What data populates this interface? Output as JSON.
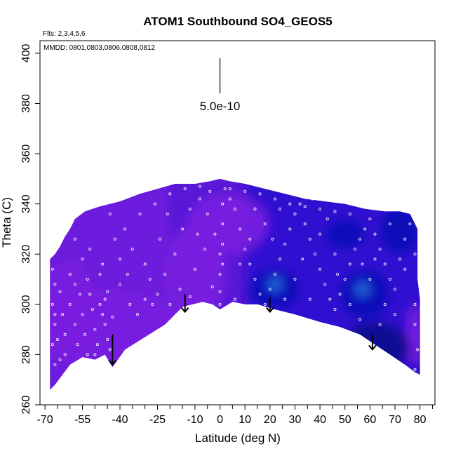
{
  "chart_data": {
    "type": "heatmap",
    "title": "ATOM1 Southbound SO4_GEOS5",
    "annotations": {
      "flights": "Flts: 2,3,4,5,6",
      "dates": "MMDD: 0801,0803,0806,0808,0812",
      "scale_label": "5.0e-10"
    },
    "xlabel": "Latitude (deg N)",
    "ylabel": "Theta (C)",
    "xlim": [
      -72,
      86
    ],
    "ylim": [
      260,
      405
    ],
    "x_ticks": [
      -70,
      -55,
      -40,
      -25,
      -10,
      0,
      10,
      20,
      30,
      40,
      50,
      60,
      70,
      80
    ],
    "x_minor_ticks": [
      -65,
      -60,
      -50,
      -45,
      -35,
      -30,
      -20,
      -15,
      -5,
      5,
      15,
      25,
      35,
      45,
      55,
      65,
      75,
      85
    ],
    "y_ticks": [
      260,
      280,
      300,
      320,
      340,
      360,
      380,
      400
    ],
    "scale_bar": {
      "x": 0,
      "y_bottom": 384,
      "y_top": 398
    },
    "colors": {
      "violet": "#7a1fe0",
      "purple": "#5a18d8",
      "blue": "#2a10d0",
      "deep_blue": "#0a08b8",
      "navy": "#08088f",
      "light_blue": "#1f6bd8",
      "dot": "#ffffff",
      "arrow": "#000000"
    },
    "top_boundary": [
      [
        -68,
        318
      ],
      [
        -66,
        320
      ],
      [
        -64,
        323
      ],
      [
        -62,
        327
      ],
      [
        -60,
        330
      ],
      [
        -58,
        334
      ],
      [
        -54,
        337
      ],
      [
        -48,
        339
      ],
      [
        -40,
        341
      ],
      [
        -32,
        344
      ],
      [
        -25,
        346
      ],
      [
        -18,
        348
      ],
      [
        -10,
        348
      ],
      [
        -4,
        349
      ],
      [
        0,
        350
      ],
      [
        4,
        349
      ],
      [
        10,
        348
      ],
      [
        18,
        346
      ],
      [
        26,
        344
      ],
      [
        34,
        342
      ],
      [
        42,
        341
      ],
      [
        50,
        340
      ],
      [
        58,
        338
      ],
      [
        66,
        337
      ],
      [
        72,
        337
      ],
      [
        76,
        336
      ],
      [
        79,
        330
      ],
      [
        79,
        310
      ],
      [
        80,
        302
      ],
      [
        80,
        290
      ]
    ],
    "bottom_boundary": [
      [
        -68,
        266
      ],
      [
        -66,
        268
      ],
      [
        -60,
        276
      ],
      [
        -55,
        279
      ],
      [
        -50,
        278
      ],
      [
        -46,
        280
      ],
      [
        -43,
        275
      ],
      [
        -38,
        282
      ],
      [
        -30,
        287
      ],
      [
        -22,
        292
      ],
      [
        -15,
        299
      ],
      [
        -11,
        300
      ],
      [
        -7,
        301
      ],
      [
        -3,
        300
      ],
      [
        0,
        298
      ],
      [
        5,
        301
      ],
      [
        10,
        300
      ],
      [
        15,
        300
      ],
      [
        22,
        298
      ],
      [
        30,
        296
      ],
      [
        40,
        293
      ],
      [
        48,
        291
      ],
      [
        56,
        288
      ],
      [
        62,
        284
      ],
      [
        68,
        280
      ],
      [
        74,
        276
      ],
      [
        78,
        273
      ],
      [
        80,
        272
      ]
    ],
    "field_blobs": [
      {
        "x": -45,
        "y": 290,
        "rx": 30,
        "ry": 16,
        "level": "violet"
      },
      {
        "x": -60,
        "y": 300,
        "rx": 10,
        "ry": 18,
        "level": "violet"
      },
      {
        "x": -10,
        "y": 312,
        "rx": 12,
        "ry": 20,
        "level": "violet"
      },
      {
        "x": 3,
        "y": 332,
        "rx": 16,
        "ry": 12,
        "level": "violet"
      },
      {
        "x": 78,
        "y": 288,
        "rx": 3,
        "ry": 12,
        "level": "violet"
      },
      {
        "x": 22,
        "y": 306,
        "rx": 10,
        "ry": 8,
        "level": "deep_blue"
      },
      {
        "x": 22,
        "y": 308,
        "rx": 3,
        "ry": 3,
        "level": "light_blue"
      },
      {
        "x": 58,
        "y": 304,
        "rx": 10,
        "ry": 10,
        "level": "deep_blue"
      },
      {
        "x": 57,
        "y": 306,
        "rx": 3,
        "ry": 3,
        "level": "light_blue"
      },
      {
        "x": 62,
        "y": 283,
        "rx": 14,
        "ry": 10,
        "level": "navy"
      },
      {
        "x": 72,
        "y": 330,
        "rx": 8,
        "ry": 10,
        "level": "deep_blue"
      },
      {
        "x": 50,
        "y": 328,
        "rx": 8,
        "ry": 6,
        "level": "deep_blue"
      }
    ],
    "arrows": [
      {
        "x": -43,
        "y_top": 288,
        "y_bottom": 276
      },
      {
        "x": -14,
        "y_top": 304,
        "y_bottom": 297
      },
      {
        "x": 20,
        "y_top": 303,
        "y_bottom": 297
      },
      {
        "x": 61,
        "y_top": 288,
        "y_bottom": 282
      }
    ],
    "observation_points": [
      [
        -67,
        314
      ],
      [
        -66,
        308
      ],
      [
        -67,
        300
      ],
      [
        -66,
        292
      ],
      [
        -67,
        284
      ],
      [
        -66,
        276
      ],
      [
        -64,
        305
      ],
      [
        -63,
        296
      ],
      [
        -62,
        288
      ],
      [
        -60,
        300
      ],
      [
        -58,
        292
      ],
      [
        -57,
        284
      ],
      [
        -56,
        304
      ],
      [
        -55,
        296
      ],
      [
        -54,
        288
      ],
      [
        -53,
        280
      ],
      [
        -52,
        304
      ],
      [
        -51,
        298
      ],
      [
        -50,
        290
      ],
      [
        -49,
        284
      ],
      [
        -48,
        300
      ],
      [
        -47,
        296
      ],
      [
        -46,
        292
      ],
      [
        -46,
        302
      ],
      [
        -45,
        286
      ],
      [
        -44,
        282
      ],
      [
        -43,
        295
      ],
      [
        -50,
        280
      ],
      [
        -55,
        278
      ],
      [
        -62,
        280
      ],
      [
        -60,
        312
      ],
      [
        -58,
        308
      ],
      [
        -45,
        305
      ],
      [
        -48,
        312
      ],
      [
        -40,
        318
      ],
      [
        -35,
        322
      ],
      [
        -30,
        316
      ],
      [
        -28,
        310
      ],
      [
        -25,
        304
      ],
      [
        -20,
        300
      ],
      [
        -33,
        296
      ],
      [
        -36,
        300
      ],
      [
        -30,
        302
      ],
      [
        -22,
        312
      ],
      [
        -18,
        320
      ],
      [
        -15,
        330
      ],
      [
        -12,
        338
      ],
      [
        -8,
        342
      ],
      [
        -5,
        336
      ],
      [
        -2,
        328
      ],
      [
        0,
        320
      ],
      [
        0,
        312
      ],
      [
        0,
        305
      ],
      [
        0,
        300
      ],
      [
        1,
        316
      ],
      [
        1,
        324
      ],
      [
        1,
        332
      ],
      [
        1,
        340
      ],
      [
        2,
        346
      ],
      [
        4,
        342
      ],
      [
        6,
        338
      ],
      [
        8,
        330
      ],
      [
        10,
        322
      ],
      [
        12,
        316
      ],
      [
        14,
        310
      ],
      [
        16,
        304
      ],
      [
        18,
        300
      ],
      [
        20,
        306
      ],
      [
        22,
        312
      ],
      [
        24,
        318
      ],
      [
        26,
        324
      ],
      [
        28,
        330
      ],
      [
        30,
        336
      ],
      [
        32,
        340
      ],
      [
        34,
        332
      ],
      [
        36,
        326
      ],
      [
        38,
        320
      ],
      [
        40,
        314
      ],
      [
        42,
        308
      ],
      [
        44,
        302
      ],
      [
        46,
        298
      ],
      [
        48,
        304
      ],
      [
        50,
        310
      ],
      [
        52,
        316
      ],
      [
        54,
        322
      ],
      [
        56,
        326
      ],
      [
        58,
        330
      ],
      [
        60,
        334
      ],
      [
        62,
        328
      ],
      [
        64,
        322
      ],
      [
        66,
        316
      ],
      [
        68,
        310
      ],
      [
        70,
        306
      ],
      [
        72,
        318
      ],
      [
        74,
        326
      ],
      [
        76,
        332
      ],
      [
        78,
        320
      ],
      [
        78,
        300
      ],
      [
        78,
        292
      ],
      [
        79,
        282
      ],
      [
        78,
        274
      ],
      [
        70,
        296
      ],
      [
        66,
        300
      ],
      [
        60,
        310
      ],
      [
        -38,
        330
      ],
      [
        -32,
        336
      ],
      [
        -26,
        340
      ],
      [
        -20,
        344
      ],
      [
        -14,
        346
      ],
      [
        -8,
        347
      ],
      [
        -4,
        345
      ],
      [
        4,
        346
      ],
      [
        10,
        345
      ],
      [
        16,
        344
      ],
      [
        22,
        342
      ],
      [
        28,
        340
      ],
      [
        34,
        339
      ],
      [
        40,
        338
      ],
      [
        46,
        337
      ],
      [
        52,
        336
      ],
      [
        -55,
        318
      ],
      [
        -52,
        322
      ],
      [
        -58,
        326
      ],
      [
        -44,
        336
      ],
      [
        -42,
        326
      ],
      [
        -40,
        308
      ],
      [
        -24,
        326
      ],
      [
        -16,
        306
      ],
      [
        -10,
        314
      ],
      [
        -6,
        322
      ],
      [
        8,
        316
      ],
      [
        12,
        326
      ],
      [
        18,
        332
      ],
      [
        24,
        338
      ],
      [
        30,
        310
      ],
      [
        36,
        302
      ],
      [
        40,
        328
      ],
      [
        46,
        320
      ],
      [
        52,
        300
      ],
      [
        56,
        294
      ],
      [
        64,
        292
      ],
      [
        68,
        332
      ],
      [
        74,
        314
      ],
      [
        -66,
        296
      ],
      [
        -65,
        286
      ],
      [
        -64,
        278
      ],
      [
        -53,
        310
      ],
      [
        -47,
        316
      ],
      [
        -37,
        312
      ],
      [
        -27,
        300
      ],
      [
        -12,
        303
      ],
      [
        -3,
        307
      ],
      [
        6,
        302
      ],
      [
        26,
        302
      ],
      [
        33,
        318
      ],
      [
        43,
        334
      ],
      [
        47,
        312
      ],
      [
        57,
        316
      ],
      [
        63,
        340
      ],
      [
        -21,
        336
      ],
      [
        -9,
        328
      ],
      [
        14,
        338
      ],
      [
        21,
        326
      ],
      [
        37,
        342
      ],
      [
        62,
        318
      ]
    ]
  }
}
